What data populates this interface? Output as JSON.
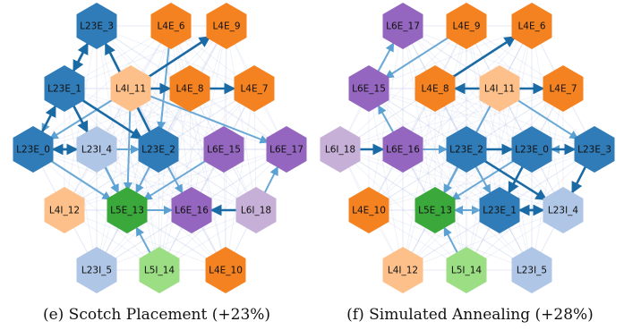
{
  "colors": {
    "L23E": "#2f7cb8",
    "L23I": "#afc6e6",
    "L4E": "#f58220",
    "L4I": "#fdc08a",
    "L5E": "#3aa83a",
    "L5I": "#9bde84",
    "L6E": "#9466bf",
    "L6I": "#c7b0d7",
    "edge_strong": "#1a6aa5",
    "edge_weak": "#c9d2ec"
  },
  "panels": [
    {
      "caption": "(e) Scotch Placement (+23%)",
      "nodes": [
        {
          "id": "L23E_3",
          "label": "L23E_3",
          "type": "L23E"
        },
        {
          "id": "L4E_6",
          "label": "L4E_6",
          "type": "L4E"
        },
        {
          "id": "L4E_9",
          "label": "L4E_9",
          "type": "L4E"
        },
        {
          "id": "L23E_1",
          "label": "L23E_1",
          "type": "L23E"
        },
        {
          "id": "L4I_11",
          "label": "L4I_11",
          "type": "L4I"
        },
        {
          "id": "L4E_8",
          "label": "L4E_8",
          "type": "L4E"
        },
        {
          "id": "L4E_7",
          "label": "L4E_7",
          "type": "L4E"
        },
        {
          "id": "L23E_0",
          "label": "L23E_0",
          "type": "L23E"
        },
        {
          "id": "L23I_4",
          "label": "L23I_4",
          "type": "L23I"
        },
        {
          "id": "L23E_2",
          "label": "L23E_2",
          "type": "L23E"
        },
        {
          "id": "L6E_15",
          "label": "L6E_15",
          "type": "L6E"
        },
        {
          "id": "L6E_17",
          "label": "L6E_17",
          "type": "L6E"
        },
        {
          "id": "L4I_12",
          "label": "L4I_12",
          "type": "L4I"
        },
        {
          "id": "L5E_13",
          "label": "L5E_13",
          "type": "L5E"
        },
        {
          "id": "L6E_16",
          "label": "L6E_16",
          "type": "L6E"
        },
        {
          "id": "L6I_18",
          "label": "L6I_18",
          "type": "L6I"
        },
        {
          "id": "L23I_5",
          "label": "L23I_5",
          "type": "L23I"
        },
        {
          "id": "L5I_14",
          "label": "L5I_14",
          "type": "L5I"
        },
        {
          "id": "L4E_10",
          "label": "L4E_10",
          "type": "L4E"
        }
      ],
      "edges_strong": [
        [
          "L23E_0",
          "L23I_4"
        ],
        [
          "L23I_4",
          "L23E_0"
        ],
        [
          "L23E_1",
          "L23I_4"
        ],
        [
          "L23E_1",
          "L23E_2"
        ],
        [
          "L4I_11",
          "L4E_8"
        ],
        [
          "L4E_8",
          "L4E_7"
        ],
        [
          "L4I_11",
          "L4E_9"
        ],
        [
          "L6I_18",
          "L6E_16"
        ],
        [
          "L23E_1",
          "L23E_3"
        ],
        [
          "L23E_3",
          "L23E_1"
        ],
        [
          "L23E_0",
          "L23E_1"
        ],
        [
          "L23E_2",
          "L23E_3"
        ]
      ],
      "edges_medium": [
        [
          "L23E_0",
          "L5E_13"
        ],
        [
          "L23I_4",
          "L5E_13"
        ],
        [
          "L23E_2",
          "L5E_13"
        ],
        [
          "L4I_11",
          "L5E_13"
        ],
        [
          "L5E_13",
          "L6E_16"
        ],
        [
          "L4I_11",
          "L6E_17"
        ],
        [
          "L6E_15",
          "L5E_13"
        ],
        [
          "L23E_1",
          "L5E_13"
        ],
        [
          "L5I_14",
          "L5E_13"
        ],
        [
          "L23E_2",
          "L6E_16"
        ],
        [
          "L6I_18",
          "L6E_17"
        ],
        [
          "L4I_11",
          "L23E_0"
        ],
        [
          "L23I_4",
          "L23E_2"
        ],
        [
          "L23E_0",
          "L23E_2"
        ],
        [
          "L4E_6",
          "L23E_2"
        ],
        [
          "L23E_3",
          "L23E_0"
        ]
      ]
    },
    {
      "caption": "(f) Simulated Annealing (+28%)",
      "nodes": [
        {
          "id": "L6E_17",
          "label": "L6E_17",
          "type": "L6E"
        },
        {
          "id": "L4E_9",
          "label": "L4E_9",
          "type": "L4E"
        },
        {
          "id": "L4E_6",
          "label": "L4E_6",
          "type": "L4E"
        },
        {
          "id": "L6E_15",
          "label": "L6E_15",
          "type": "L6E"
        },
        {
          "id": "L4E_8",
          "label": "L4E_8",
          "type": "L4E"
        },
        {
          "id": "L4I_11",
          "label": "L4I_11",
          "type": "L4I"
        },
        {
          "id": "L4E_7",
          "label": "L4E_7",
          "type": "L4E"
        },
        {
          "id": "L6I_18",
          "label": "L6I_18",
          "type": "L6I"
        },
        {
          "id": "L6E_16",
          "label": "L6E_16",
          "type": "L6E"
        },
        {
          "id": "L23E_2",
          "label": "L23E_2",
          "type": "L23E"
        },
        {
          "id": "L23E_0",
          "label": "L23E_0",
          "type": "L23E"
        },
        {
          "id": "L23E_3",
          "label": "L23E_3",
          "type": "L23E"
        },
        {
          "id": "L4E_10",
          "label": "L4E_10",
          "type": "L4E"
        },
        {
          "id": "L5E_13",
          "label": "L5E_13",
          "type": "L5E"
        },
        {
          "id": "L23E_1",
          "label": "L23E_1",
          "type": "L23E"
        },
        {
          "id": "L23I_4",
          "label": "L23I_4",
          "type": "L23I"
        },
        {
          "id": "L4I_12",
          "label": "L4I_12",
          "type": "L4I"
        },
        {
          "id": "L5I_14",
          "label": "L5I_14",
          "type": "L5I"
        },
        {
          "id": "L23I_5",
          "label": "L23I_5",
          "type": "L23I"
        }
      ],
      "edges_strong": [
        [
          "L23E_2",
          "L23I_4"
        ],
        [
          "L23E_1",
          "L23I_4"
        ],
        [
          "L23I_4",
          "L23E_1"
        ],
        [
          "L23E_0",
          "L23E_3"
        ],
        [
          "L23E_3",
          "L23I_4"
        ],
        [
          "L4I_11",
          "L4E_8"
        ],
        [
          "L4I_11",
          "L4E_7"
        ],
        [
          "L6I_18",
          "L6E_16"
        ],
        [
          "L23E_0",
          "L23E_1"
        ],
        [
          "L23E_2",
          "L23E_0"
        ],
        [
          "L4E_8",
          "L4E_6"
        ]
      ],
      "edges_medium": [
        [
          "L6E_15",
          "L6E_17"
        ],
        [
          "L6E_16",
          "L6E_15"
        ],
        [
          "L23E_2",
          "L5E_13"
        ],
        [
          "L23E_1",
          "L5E_13"
        ],
        [
          "L5E_13",
          "L23E_1"
        ],
        [
          "L23I_4",
          "L5E_13"
        ],
        [
          "L23E_0",
          "L5E_13"
        ],
        [
          "L5I_14",
          "L5E_13"
        ],
        [
          "L4I_11",
          "L23E_3"
        ],
        [
          "L6E_16",
          "L23E_2"
        ],
        [
          "L23E_3",
          "L23E_0"
        ],
        [
          "L4E_9",
          "L6E_15"
        ],
        [
          "L4I_11",
          "L5E_13"
        ],
        [
          "L23E_2",
          "L23E_1"
        ]
      ]
    }
  ]
}
